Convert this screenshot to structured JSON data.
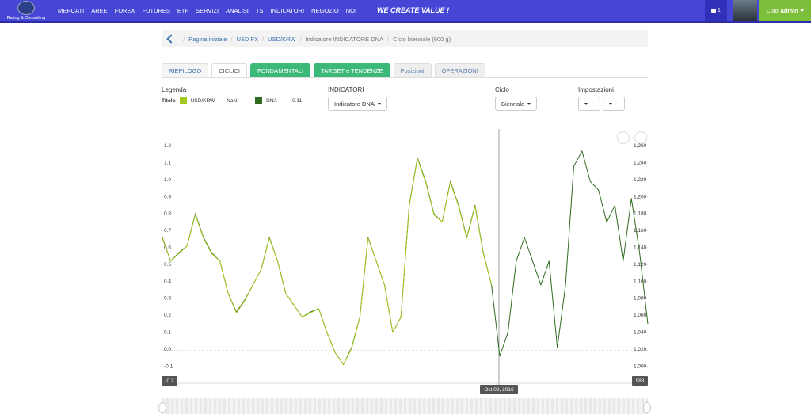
{
  "navbar": {
    "logo_text": "Rating & Consulting",
    "menu": [
      "MERCATI",
      "AREE",
      "FOREX",
      "FUTURES",
      "ETF",
      "SERVIZI",
      "ANALISI",
      "TS",
      "INDICATORI",
      "NEGOZIO",
      "NOI"
    ],
    "slogan": "WE CREATE VALUE !",
    "cart_count": "1",
    "greeting": "Ciao",
    "user": "admin"
  },
  "breadcrumb": [
    "Pagina iniziale",
    "USD FX",
    "USD/KRW",
    "Indicatore INDICATORE DNA",
    "Ciclo biennale (600 g)"
  ],
  "tabs": [
    "RIEPILOGO",
    "CICLICI",
    "FONDAMENTALI",
    "TARGET e TENDENZE",
    "Posizioni",
    "OPERAZIONI"
  ],
  "legend": {
    "title": "Legenda",
    "row_label": "Titolo",
    "values": [
      "NaN",
      -0.11
    ]
  },
  "indicators": {
    "label": "INDICATORI",
    "button": "Indicatore DNA"
  },
  "cycle": {
    "label": "Ciclo",
    "button": "Biennale"
  },
  "settings": {
    "label": "Impostazioni"
  },
  "chart_data": {
    "type": "line",
    "series": [
      {
        "name": "USD/KRW",
        "color": "#a5c81e",
        "axis": "y2",
        "values": [
          1151,
          1124,
          1133,
          1142,
          1179,
          1151,
          1133,
          1124,
          1086,
          1063,
          1077,
          1096,
          1114,
          1151,
          1124,
          1086,
          1072,
          1058,
          1063,
          1068,
          1040,
          1016,
          1002,
          1021,
          1058,
          1151,
          1124,
          1096,
          1040,
          1058,
          1189,
          1245,
          1217,
          1179,
          1170,
          1217,
          1189,
          1151,
          1189,
          1133,
          1096,
          null,
          null,
          null,
          null,
          null,
          null,
          null,
          null,
          null,
          null,
          null,
          null,
          null,
          null,
          null,
          null,
          null,
          null,
          null
        ]
      },
      {
        "name": "DNA",
        "color": "#2e6b1f",
        "values": [
          0.66,
          0.52,
          0.57,
          0.61,
          0.8,
          0.66,
          0.57,
          0.52,
          0.33,
          0.22,
          0.29,
          0.38,
          0.47,
          0.66,
          0.52,
          0.33,
          0.26,
          0.19,
          0.22,
          0.24,
          0.1,
          -0.02,
          -0.09,
          0.01,
          0.19,
          0.66,
          0.52,
          0.38,
          0.1,
          0.19,
          0.85,
          1.13,
          0.99,
          0.8,
          0.75,
          0.99,
          0.85,
          0.66,
          0.85,
          0.57,
          0.38,
          -0.04,
          0.1,
          0.52,
          0.66,
          0.52,
          0.38,
          0.52,
          0.01,
          0.38,
          1.08,
          1.17,
          0.99,
          0.94,
          0.75,
          0.85,
          0.52,
          0.89,
          0.57,
          0.15
        ]
      }
    ],
    "ylim": [
      -0.2,
      1.3
    ],
    "yticks": [
      -0.1,
      {
        "value": 0,
        "label": "0.0"
      },
      0.1,
      0.2,
      0.3,
      0.4,
      0.5,
      0.6,
      0.7,
      0.8,
      0.9,
      {
        "value": 1,
        "label": "1.0"
      },
      1.1,
      1.2
    ],
    "y2lim": [
      980,
      1280
    ],
    "y2ticks": [
      {
        "value": 1000,
        "label": "1,000"
      },
      {
        "value": 1020,
        "label": "1,020"
      },
      {
        "value": 1040,
        "label": "1,040"
      },
      {
        "value": 1060,
        "label": "1,060"
      },
      {
        "value": 1080,
        "label": "1,080"
      },
      {
        "value": 1100,
        "label": "1,100"
      },
      {
        "value": 1120,
        "label": "1,120"
      },
      {
        "value": 1140,
        "label": "1,140"
      },
      {
        "value": 1160,
        "label": "1,160"
      },
      {
        "value": 1180,
        "label": "1,180"
      },
      {
        "value": 1200,
        "label": "1,200"
      },
      {
        "value": 1220,
        "label": "1,220"
      },
      {
        "value": 1240,
        "label": "1,240"
      },
      {
        "value": 1260,
        "label": "1,260"
      }
    ],
    "grid": false,
    "readouts": {
      "left": -0.2,
      "right": 983,
      "x": "Oct 08, 2016"
    }
  }
}
